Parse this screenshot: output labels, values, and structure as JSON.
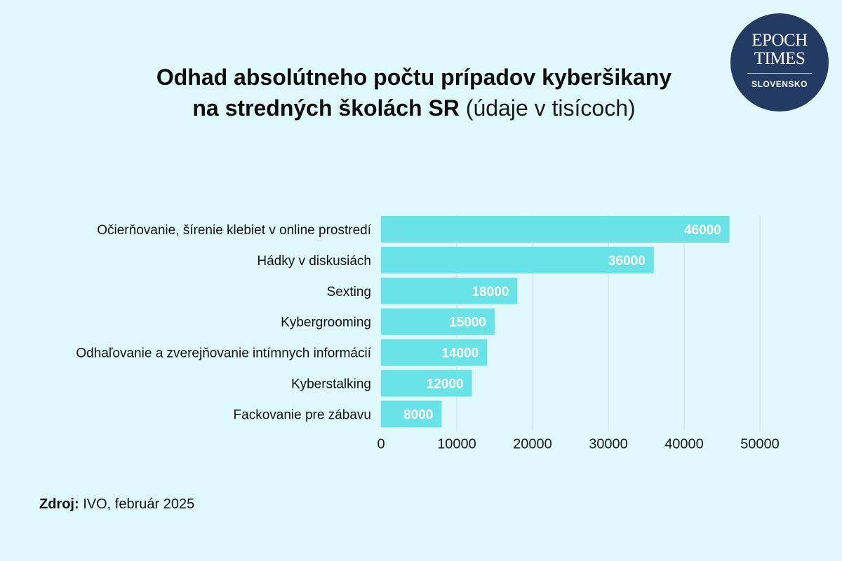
{
  "title": {
    "line1": "Odhad absolútneho počtu prípadov kyberšikany",
    "line2_bold": "na stredných školách SR",
    "line2_light": " (údaje v tisícoch)"
  },
  "logo": {
    "line1": "EPOCH",
    "line2": "TIMES",
    "line3": "SLOVENSKO"
  },
  "source": {
    "label": "Zdroj:",
    "text": " IVO, február 2025"
  },
  "colors": {
    "background": "#dff9fd",
    "bar": "#6ae3e8",
    "logo_bg": "#233a63",
    "grid": "#c9dde2"
  },
  "chart_data": {
    "type": "bar",
    "orientation": "horizontal",
    "categories": [
      "Očierňovanie, šírenie klebiet v online prostredí",
      "Hádky v diskusiách",
      "Sexting",
      "Kybergrooming",
      "Odhaľovanie a zverejňovanie intímnych informácií",
      "Kyberstalking",
      "Fackovanie pre zábavu"
    ],
    "values": [
      46000,
      36000,
      18000,
      15000,
      14000,
      12000,
      8000
    ],
    "data_labels": [
      "46000",
      "36000",
      "18000",
      "15000",
      "14000",
      "12000",
      "8000"
    ],
    "xlim": [
      0,
      50000
    ],
    "xticks": [
      "0",
      "10000",
      "20000",
      "30000",
      "40000",
      "50000"
    ],
    "grid": "vertical",
    "legend": "none"
  }
}
